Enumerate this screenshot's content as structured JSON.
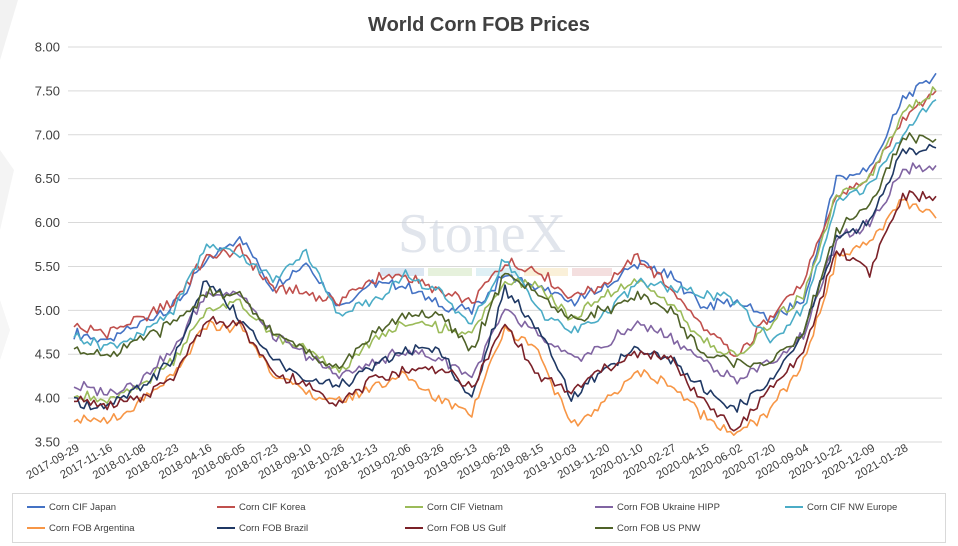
{
  "chart_data": {
    "type": "line",
    "title": "World Corn FOB Prices",
    "watermark": "StoneX",
    "xlabel": "",
    "ylabel": "",
    "ylim": [
      3.5,
      8.0
    ],
    "yticks": [
      "3.50",
      "4.00",
      "4.50",
      "5.00",
      "5.50",
      "6.00",
      "6.50",
      "7.00",
      "7.50",
      "8.00"
    ],
    "xticks": [
      "2017-09-29",
      "2017-11-16",
      "2018-01-08",
      "2018-02-23",
      "2018-04-16",
      "2018-06-05",
      "2018-07-23",
      "2018-09-10",
      "2018-10-26",
      "2018-12-13",
      "2019-02-06",
      "2019-03-26",
      "2019-05-13",
      "2019-06-28",
      "2019-08-15",
      "2019-10-03",
      "2019-11-20",
      "2020-01-10",
      "2020-02-27",
      "2020-04-15",
      "2020-06-02",
      "2020-07-20",
      "2020-09-04",
      "2020-10-22",
      "2020-12-09",
      "2021-01-28"
    ],
    "grid": true,
    "legend_position": "bottom",
    "x": [
      "2017-09-29",
      "2017-11-16",
      "2018-01-08",
      "2018-02-23",
      "2018-04-16",
      "2018-06-05",
      "2018-07-23",
      "2018-09-10",
      "2018-10-26",
      "2018-12-13",
      "2019-02-06",
      "2019-03-26",
      "2019-05-13",
      "2019-06-28",
      "2019-08-15",
      "2019-10-03",
      "2019-11-20",
      "2020-01-10",
      "2020-02-27",
      "2020-04-15",
      "2020-06-02",
      "2020-07-20",
      "2020-09-04",
      "2020-10-22",
      "2020-12-09",
      "2021-01-28",
      "2021-02-25"
    ],
    "series": [
      {
        "name": "Corn CIF Japan",
        "color": "#4472c4",
        "values": [
          4.75,
          4.65,
          4.85,
          5.05,
          5.55,
          5.85,
          5.25,
          5.55,
          5.05,
          5.3,
          5.3,
          5.05,
          5.0,
          5.4,
          5.25,
          5.1,
          5.25,
          5.55,
          5.4,
          5.05,
          5.1,
          4.9,
          5.1,
          6.5,
          6.6,
          7.4,
          7.7
        ]
      },
      {
        "name": "Corn CIF Korea",
        "color": "#c0504d",
        "values": [
          4.82,
          4.75,
          4.9,
          5.1,
          5.6,
          5.7,
          5.25,
          5.2,
          5.1,
          5.35,
          5.4,
          5.2,
          5.1,
          5.55,
          5.45,
          5.15,
          5.3,
          5.6,
          5.25,
          4.8,
          4.45,
          4.95,
          5.3,
          6.3,
          6.5,
          7.2,
          7.5
        ]
      },
      {
        "name": "Corn CIF Vietnam",
        "color": "#9bbb59",
        "values": [
          4.05,
          3.95,
          4.15,
          4.45,
          5.0,
          5.1,
          4.7,
          4.55,
          4.3,
          4.65,
          4.85,
          4.8,
          4.75,
          5.35,
          5.3,
          4.9,
          5.15,
          5.35,
          5.05,
          4.65,
          4.45,
          4.85,
          5.15,
          6.3,
          6.5,
          7.25,
          7.5
        ]
      },
      {
        "name": "Corn FOB Ukraine HIPP",
        "color": "#8064a2",
        "values": [
          4.15,
          4.05,
          4.2,
          4.55,
          5.2,
          5.2,
          4.7,
          4.5,
          4.25,
          4.4,
          4.55,
          4.45,
          4.25,
          5.0,
          4.7,
          4.45,
          4.6,
          4.85,
          4.7,
          4.4,
          4.2,
          4.4,
          4.7,
          5.8,
          6.0,
          6.6,
          6.65
        ]
      },
      {
        "name": "Corn CIF NW Europe",
        "color": "#4bacc6",
        "values": [
          4.72,
          4.58,
          4.72,
          5.0,
          5.75,
          5.65,
          5.35,
          5.65,
          4.95,
          5.1,
          5.4,
          5.2,
          4.85,
          5.6,
          5.0,
          4.75,
          4.95,
          5.3,
          5.25,
          5.2,
          5.1,
          4.65,
          5.0,
          6.2,
          6.45,
          7.0,
          7.4
        ]
      },
      {
        "name": "Corn FOB Argentina",
        "color": "#f79646",
        "values": [
          3.8,
          3.7,
          3.95,
          4.25,
          4.85,
          4.8,
          4.3,
          4.05,
          3.95,
          4.15,
          4.25,
          4.0,
          3.85,
          4.8,
          4.55,
          3.65,
          3.95,
          4.3,
          4.15,
          3.8,
          3.6,
          3.85,
          4.4,
          5.6,
          5.8,
          6.25,
          6.05
        ]
      },
      {
        "name": "Corn FOB Brazil",
        "color": "#1f3864",
        "values": [
          3.95,
          3.9,
          4.1,
          4.45,
          5.35,
          4.9,
          4.45,
          4.2,
          4.15,
          4.35,
          4.55,
          4.55,
          4.0,
          5.25,
          4.8,
          4.0,
          4.35,
          4.55,
          4.45,
          4.1,
          3.9,
          4.2,
          4.75,
          5.8,
          6.0,
          6.8,
          6.85
        ]
      },
      {
        "name": "Corn FOB US Gulf",
        "color": "#7b2128",
        "values": [
          4.0,
          3.9,
          4.0,
          4.25,
          4.9,
          4.85,
          4.3,
          4.15,
          3.95,
          4.2,
          4.3,
          4.35,
          4.1,
          4.85,
          4.25,
          4.05,
          4.35,
          4.5,
          4.45,
          3.95,
          3.65,
          4.1,
          4.5,
          5.7,
          5.45,
          6.3,
          6.3
        ]
      },
      {
        "name": "Corn FOB US PNW",
        "color": "#4f6228",
        "values": [
          4.55,
          4.5,
          4.65,
          4.85,
          5.2,
          5.15,
          4.75,
          4.55,
          4.35,
          4.7,
          4.95,
          4.95,
          4.55,
          5.4,
          5.2,
          4.9,
          5.0,
          5.15,
          5.0,
          4.5,
          4.4,
          4.4,
          4.75,
          5.9,
          6.2,
          6.95,
          6.95
        ]
      }
    ]
  },
  "legend_rows": [
    [
      "Corn CIF Japan",
      "Corn CIF Korea",
      "Corn CIF Vietnam",
      "Corn FOB Ukraine HIPP",
      "Corn CIF NW Europe"
    ],
    [
      "Corn FOB Argentina",
      "Corn FOB Brazil",
      "Corn FOB US Gulf",
      "Corn FOB US PNW"
    ]
  ]
}
